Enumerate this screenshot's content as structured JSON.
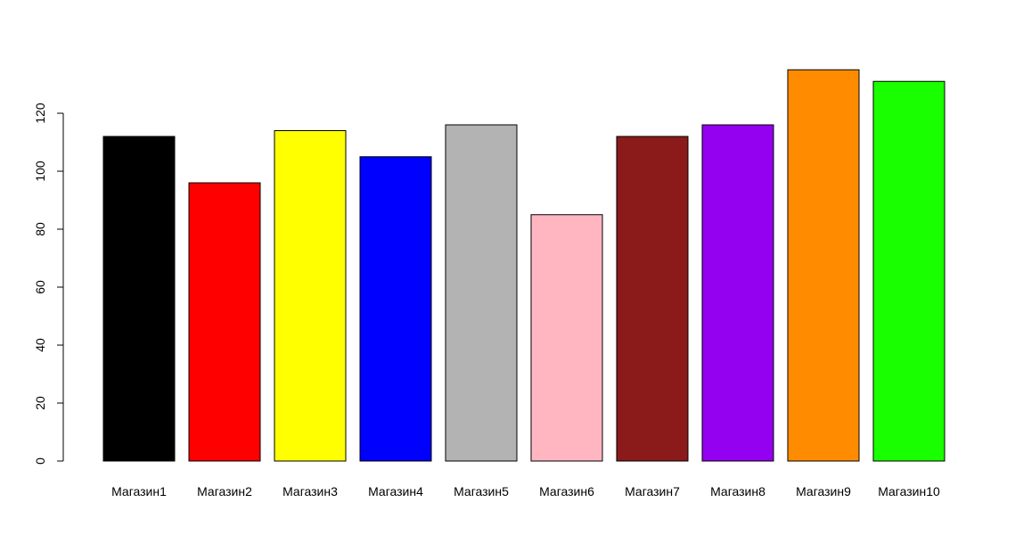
{
  "chart_data": {
    "type": "bar",
    "title": "",
    "xlabel": "",
    "ylabel": "",
    "categories": [
      "Магазин1",
      "Магазин2",
      "Магазин3",
      "Магазин4",
      "Магазин5",
      "Магазин6",
      "Магазин7",
      "Магазин8",
      "Магазин9",
      "Магазин10"
    ],
    "values": [
      112,
      96,
      114,
      105,
      116,
      85,
      112,
      116,
      135,
      131
    ],
    "colors": [
      "#000000",
      "#ff0000",
      "#ffff00",
      "#0000ff",
      "#b3b3b3",
      "#ffb6c1",
      "#8b1a1a",
      "#9400f0",
      "#ff8c00",
      "#1aff00"
    ],
    "ylim": [
      0,
      135
    ],
    "yticks": [
      0,
      20,
      40,
      60,
      80,
      100,
      120
    ],
    "grid": false,
    "legend": "none"
  }
}
